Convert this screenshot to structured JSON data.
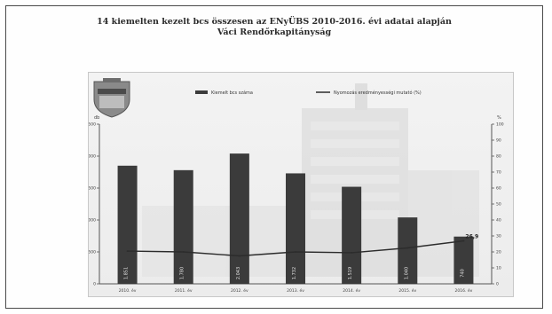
{
  "title_line1": "14 kiemelten kezelt bcs összesen az ENyÜBS 2010-2016. évi adatai alapján",
  "title_line2": "Váci Rendőrkapitányság",
  "chart_data": {
    "type": "bar",
    "categories": [
      "2010. év",
      "2011. év",
      "2012. év",
      "2013. év",
      "2014. év",
      "2015. év",
      "2016. év"
    ],
    "series": [
      {
        "name": "Kiemelt bcs száma",
        "type": "bar",
        "axis": "left",
        "values": [
          1850,
          1780,
          2040,
          1730,
          1520,
          1040,
          740
        ]
      },
      {
        "name": "Nyomozás eredményességi mutató (%)",
        "type": "line",
        "axis": "right",
        "values": [
          20.5,
          20.0,
          17.5,
          20.0,
          19.5,
          22.5,
          26.9
        ]
      }
    ],
    "bar_labels": [
      "1.851",
      "1.780",
      "2.043",
      "1.732",
      "1.519",
      "1.040",
      "740"
    ],
    "line_end_label": "26,9",
    "y_left": {
      "lim": [
        0,
        2500
      ],
      "ticks": [
        0,
        500,
        1000,
        1500,
        2000,
        2500
      ],
      "label": "db"
    },
    "y_right": {
      "lim": [
        0,
        100
      ],
      "ticks": [
        0,
        10,
        20,
        30,
        40,
        50,
        60,
        70,
        80,
        90,
        100
      ],
      "label": "%"
    },
    "legend_position": "top",
    "grid": false,
    "bar_color": "#3b3b3b",
    "line_color": "#2c2c2c"
  }
}
